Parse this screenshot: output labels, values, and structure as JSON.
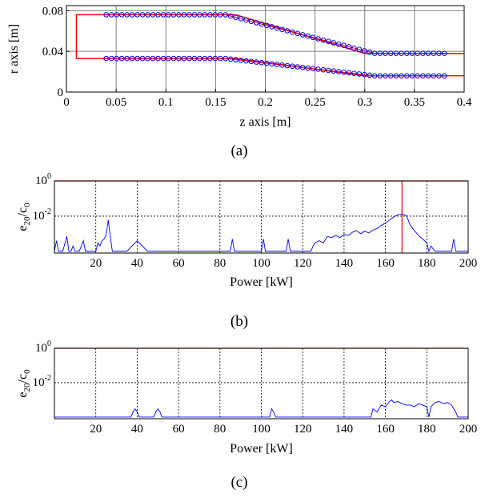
{
  "chart_data": [
    {
      "type": "line",
      "panel": "(a)",
      "caption": "(a)",
      "xlabel": "z axis [m]",
      "ylabel": "r axis [m]",
      "xlim": [
        0,
        0.4
      ],
      "ylim": [
        0,
        0.085
      ],
      "xticks": [
        0,
        0.05,
        0.1,
        0.15,
        0.2,
        0.25,
        0.3,
        0.35,
        0.4
      ],
      "xtick_labels": [
        "0",
        "0.05",
        "0.1",
        "0.15",
        "0.2",
        "0.25",
        "0.3",
        "0.35",
        "0.4"
      ],
      "yticks": [
        0,
        0.04,
        0.08
      ],
      "ytick_labels": [
        "0",
        "0.04",
        "0.08"
      ],
      "grid": true,
      "colors": {
        "outline": "#ff0000",
        "markers": "#0000ff"
      },
      "outline": {
        "x": [
          0.4,
          0.3,
          0.17,
          0.01,
          0.01,
          0.17,
          0.3,
          0.4
        ],
        "y": [
          0.038,
          0.038,
          0.076,
          0.076,
          0.033,
          0.033,
          0.016,
          0.016
        ]
      },
      "series": [
        {
          "x": [
            0.04,
            0.16,
            0.31,
            0.38
          ],
          "y": [
            0.076,
            0.076,
            0.038,
            0.038
          ]
        },
        {
          "x": [
            0.04,
            0.16,
            0.31,
            0.38
          ],
          "y": [
            0.033,
            0.033,
            0.016,
            0.016
          ]
        }
      ]
    },
    {
      "type": "line",
      "panel": "(b)",
      "caption": "(b)",
      "xlabel": "Power [kW]",
      "ylabel": "e",
      "ylabel_sub1": "20",
      "ylabel_mid": "/c",
      "ylabel_sub2": "0",
      "yscale": "log",
      "xlim": [
        0,
        200
      ],
      "ylim": [
        8e-05,
        1
      ],
      "xticks": [
        20,
        40,
        60,
        80,
        100,
        120,
        140,
        160,
        180,
        200
      ],
      "xtick_labels": [
        "20",
        "40",
        "60",
        "80",
        "100",
        "120",
        "140",
        "160",
        "180",
        "200"
      ],
      "yticks": [
        1,
        0.01
      ],
      "ytick_base": "10",
      "ytick_exps": [
        "0",
        "-2"
      ],
      "grid": true,
      "colors": {
        "series": "#0000ff",
        "threshold": "#ff0000"
      },
      "threshold_y": 1,
      "marker_x": 168,
      "x": [
        0,
        1,
        2,
        3,
        4,
        6,
        7,
        8,
        9,
        10,
        12,
        14,
        15,
        17,
        19,
        20,
        21,
        22,
        23,
        24,
        25,
        26,
        27,
        28,
        30,
        35,
        40,
        45,
        50,
        55,
        60,
        65,
        70,
        75,
        80,
        85,
        86,
        87,
        88,
        90,
        95,
        100,
        101,
        102,
        105,
        110,
        112,
        113,
        114,
        115,
        120,
        124,
        125,
        126,
        128,
        130,
        132,
        134,
        136,
        138,
        140,
        142,
        144,
        146,
        148,
        150,
        152,
        154,
        156,
        158,
        160,
        162,
        164,
        166,
        168,
        169,
        170,
        171,
        172,
        174,
        176,
        178,
        180,
        181,
        182,
        184,
        186,
        188,
        190,
        192,
        193,
        194,
        196,
        198,
        200
      ],
      "y": [
        0.0001,
        0.0004,
        0.0001,
        0.0001,
        0.0001,
        0.0007,
        0.0001,
        0.0001,
        0.0002,
        0.0001,
        0.0001,
        0.0004,
        0.0001,
        0.0001,
        0.0001,
        0.0001,
        0.0003,
        0.0002,
        0.0004,
        0.0005,
        0.0008,
        0.006,
        0.0007,
        0.0001,
        0.0001,
        0.0001,
        0.0004,
        0.0001,
        0.0001,
        0.0001,
        0.0001,
        0.0001,
        0.0001,
        0.0001,
        0.0001,
        0.0001,
        0.0005,
        0.0001,
        0.0001,
        0.0001,
        0.0001,
        0.0001,
        0.0005,
        0.0001,
        0.0001,
        0.0001,
        0.0001,
        0.0005,
        0.0001,
        0.0001,
        0.0001,
        0.0001,
        0.0002,
        0.0003,
        0.0004,
        0.0003,
        0.0007,
        0.0006,
        0.0008,
        0.0006,
        0.0009,
        0.0008,
        0.0012,
        0.0015,
        0.001,
        0.0014,
        0.0011,
        0.0016,
        0.002,
        0.003,
        0.004,
        0.006,
        0.009,
        0.012,
        0.013,
        0.012,
        0.011,
        0.006,
        0.003,
        0.0015,
        0.0008,
        0.0005,
        0.0003,
        0.0001,
        0.0002,
        0.0001,
        0.0001,
        0.0001,
        0.0001,
        0.0001,
        0.0005,
        0.0001,
        0.0001,
        0.0001,
        0.0001
      ]
    },
    {
      "type": "line",
      "panel": "(c)",
      "caption": "(c)",
      "xlabel": "Power [kW]",
      "ylabel": "e",
      "ylabel_sub1": "20",
      "ylabel_mid": "/c",
      "ylabel_sub2": "0",
      "yscale": "log",
      "xlim": [
        0,
        200
      ],
      "ylim": [
        8e-05,
        1
      ],
      "xticks": [
        20,
        40,
        60,
        80,
        100,
        120,
        140,
        160,
        180,
        200
      ],
      "xtick_labels": [
        "20",
        "40",
        "60",
        "80",
        "100",
        "120",
        "140",
        "160",
        "180",
        "200"
      ],
      "yticks": [
        1,
        0.01
      ],
      "ytick_base": "10",
      "ytick_exps": [
        "0",
        "-2"
      ],
      "grid": true,
      "colors": {
        "series": "#0000ff",
        "threshold": "#ff0000"
      },
      "threshold_y": 1,
      "x": [
        0,
        20,
        37,
        38,
        39,
        40,
        41,
        48,
        49,
        50,
        51,
        52,
        104,
        105,
        106,
        107,
        153,
        154,
        156,
        158,
        160,
        162,
        163,
        164,
        166,
        168,
        170,
        172,
        174,
        176,
        178,
        180,
        181,
        182,
        184,
        186,
        188,
        190,
        192,
        193,
        194,
        195,
        200
      ],
      "y": [
        0.0001,
        0.0001,
        0.0001,
        0.0002,
        0.0003,
        0.0002,
        0.0001,
        0.0001,
        0.0002,
        0.0003,
        0.0002,
        0.0001,
        0.0001,
        0.0003,
        0.0002,
        0.0001,
        0.0001,
        0.0003,
        0.0002,
        0.0005,
        0.0004,
        0.0008,
        0.001,
        0.0007,
        0.0008,
        0.0006,
        0.0005,
        0.0005,
        0.0004,
        0.0006,
        0.0005,
        0.0004,
        0.0001,
        0.0004,
        0.0007,
        0.0008,
        0.0006,
        0.0007,
        0.0005,
        0.0003,
        0.0002,
        0.0001,
        0.0001
      ]
    }
  ]
}
